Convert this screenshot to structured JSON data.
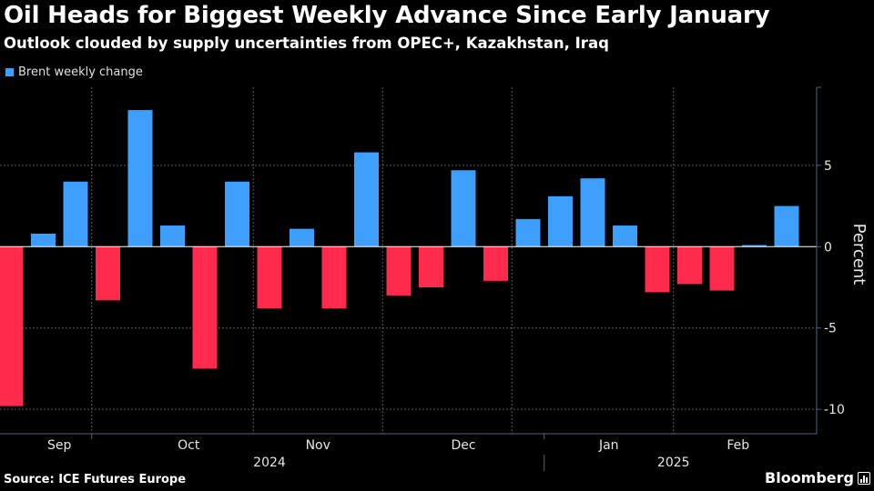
{
  "header": {
    "title": "Oil Heads for Biggest Weekly Advance Since Early January",
    "subtitle": "Outlook clouded by supply uncertainties from OPEC+, Kazakhstan, Iraq"
  },
  "legend": {
    "label": "Brent weekly change",
    "color": "#3d9ffb"
  },
  "footer": {
    "source": "Source: ICE Futures Europe",
    "brand": "Bloomberg"
  },
  "colors": {
    "positive": "#3d9ffb",
    "negative": "#ff2a4c",
    "background": "#000000",
    "axis": "#4f6480",
    "grid": "#5a5a5a"
  },
  "chart_data": {
    "type": "bar",
    "title": "Oil Heads for Biggest Weekly Advance Since Early January",
    "subtitle": "Outlook clouded by supply uncertainties from OPEC+, Kazakhstan, Iraq",
    "series": [
      {
        "name": "Brent weekly change",
        "values": [
          -9.8,
          0.8,
          4.0,
          -3.3,
          8.4,
          1.3,
          -7.5,
          4.0,
          -3.8,
          1.1,
          -3.8,
          5.8,
          -3.0,
          -2.5,
          4.7,
          -2.1,
          1.7,
          3.1,
          4.2,
          1.3,
          -2.8,
          -2.3,
          -2.7,
          0.1,
          2.5
        ]
      }
    ],
    "xlabel": "",
    "ylabel": "Percent",
    "ylim": [
      -11.5,
      9.8
    ],
    "yticks": [
      5,
      0,
      -5,
      -10
    ],
    "ytick_labels": [
      "5",
      "0",
      "-5",
      "-10"
    ],
    "month_labels": [
      "Sep",
      "Oct",
      "Nov",
      "Dec",
      "Jan",
      "Feb"
    ],
    "month_label_bars": [
      1.5,
      5.5,
      9.5,
      14,
      18.5,
      22.5
    ],
    "month_gridlines_after_bar": [
      2.5,
      7.5,
      11.5,
      15.5,
      20.5
    ],
    "year_labels": [
      "2024",
      "2025"
    ],
    "year_label_bars": [
      8,
      20.5
    ],
    "year_divider_after_bar": 16.5,
    "legend_position": "top-left",
    "grid": true
  }
}
